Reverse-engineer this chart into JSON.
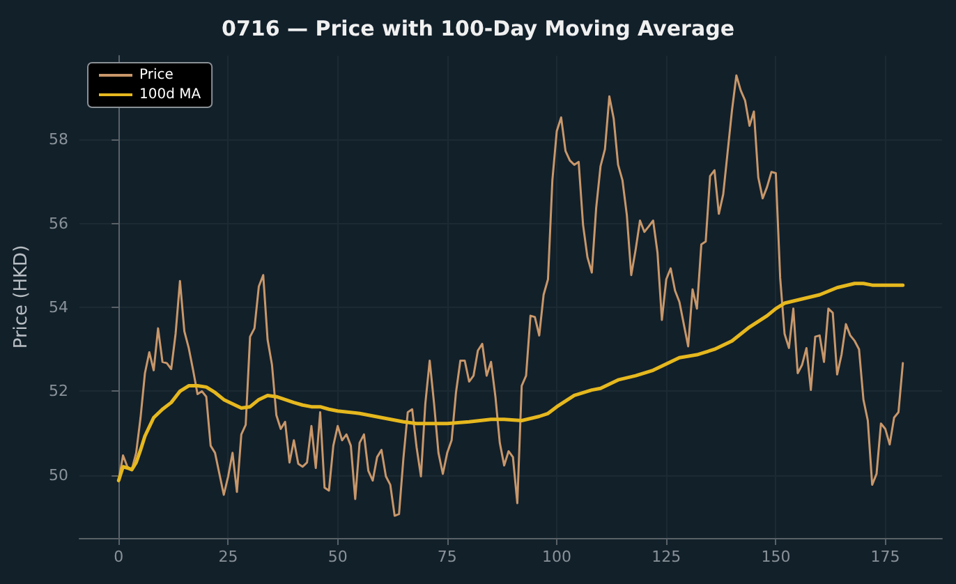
{
  "chart_data": {
    "type": "line",
    "title": "0716 — Price with 100-Day Moving Average",
    "ylabel": "Price (HKD)",
    "xlim": [
      -8.95,
      187.95
    ],
    "xticks": [
      0,
      25,
      50,
      75,
      100,
      125,
      150,
      175
    ],
    "ylim": [
      48.5,
      60
    ],
    "yticks": [
      50,
      52,
      54,
      56,
      58
    ],
    "grid": true,
    "legend": "top left",
    "marker": "none",
    "line_style": "solid",
    "series": [
      {
        "name": "Price",
        "color": "#c8976a",
        "x": [
          0,
          1,
          2,
          3,
          4,
          5,
          6,
          7,
          8,
          9,
          10,
          11,
          12,
          13,
          14,
          15,
          16,
          17,
          18,
          19,
          20,
          21,
          22,
          23,
          24,
          25,
          26,
          27,
          28,
          29,
          30,
          31,
          32,
          33,
          34,
          35,
          36,
          37,
          38,
          39,
          40,
          41,
          42,
          43,
          44,
          45,
          46,
          47,
          48,
          49,
          50,
          51,
          52,
          53,
          54,
          55,
          56,
          57,
          58,
          59,
          60,
          61,
          62,
          63,
          64,
          65,
          66,
          67,
          68,
          69,
          70,
          71,
          72,
          73,
          74,
          75,
          76,
          77,
          78,
          79,
          80,
          81,
          82,
          83,
          84,
          85,
          86,
          87,
          88,
          89,
          90,
          91,
          92,
          93,
          94,
          95,
          96,
          97,
          98,
          99,
          100,
          101,
          102,
          103,
          104,
          105,
          106,
          107,
          108,
          109,
          110,
          111,
          112,
          113,
          114,
          115,
          116,
          117,
          118,
          119,
          120,
          121,
          122,
          123,
          124,
          125,
          126,
          127,
          128,
          129,
          130,
          131,
          132,
          133,
          134,
          135,
          136,
          137,
          138,
          139,
          140,
          141,
          142,
          143,
          144,
          145,
          146,
          147,
          148,
          149,
          150,
          151,
          152,
          153,
          154,
          155,
          156,
          157,
          158,
          159,
          160,
          161,
          162,
          163,
          164,
          165,
          166,
          167,
          168,
          169,
          170,
          171,
          172,
          173,
          174,
          175,
          176,
          177,
          178,
          179
        ],
        "values": [
          49.87,
          50.47,
          50.2,
          50.13,
          50.53,
          51.37,
          52.43,
          52.93,
          52.5,
          53.5,
          52.7,
          52.67,
          52.53,
          53.37,
          54.63,
          53.43,
          53.03,
          52.5,
          51.93,
          52.0,
          51.87,
          50.7,
          50.53,
          50.03,
          49.53,
          49.97,
          50.53,
          49.6,
          50.97,
          51.2,
          53.3,
          53.5,
          54.5,
          54.77,
          53.23,
          52.63,
          51.43,
          51.1,
          51.27,
          50.3,
          50.83,
          50.27,
          50.2,
          50.3,
          51.17,
          50.17,
          51.5,
          49.7,
          49.63,
          50.7,
          51.17,
          50.83,
          50.97,
          50.7,
          49.43,
          50.77,
          50.97,
          50.1,
          49.87,
          50.43,
          50.6,
          49.97,
          49.77,
          49.03,
          49.07,
          50.4,
          51.5,
          51.57,
          50.67,
          49.97,
          51.7,
          52.73,
          51.7,
          50.53,
          50.03,
          50.53,
          50.83,
          51.97,
          52.73,
          52.73,
          52.23,
          52.37,
          52.97,
          53.13,
          52.37,
          52.7,
          51.87,
          50.77,
          50.23,
          50.57,
          50.43,
          49.33,
          52.13,
          52.37,
          53.8,
          53.77,
          53.33,
          54.3,
          54.67,
          57.03,
          58.2,
          58.53,
          57.73,
          57.5,
          57.4,
          57.47,
          55.97,
          55.2,
          54.83,
          56.37,
          57.37,
          57.77,
          59.03,
          58.5,
          57.4,
          57.03,
          56.2,
          54.77,
          55.37,
          56.07,
          55.8,
          55.93,
          56.07,
          55.3,
          53.7,
          54.67,
          54.93,
          54.4,
          54.13,
          53.6,
          53.07,
          54.43,
          53.97,
          55.5,
          55.57,
          57.13,
          57.27,
          56.23,
          56.7,
          57.7,
          58.7,
          59.53,
          59.17,
          58.93,
          58.33,
          58.67,
          57.1,
          56.6,
          56.87,
          57.23,
          57.2,
          54.7,
          53.37,
          53.03,
          53.97,
          52.43,
          52.63,
          53.03,
          52.03,
          53.3,
          53.33,
          52.7,
          53.97,
          53.87,
          52.4,
          52.87,
          53.6,
          53.33,
          53.2,
          53.0,
          51.8,
          51.3,
          49.77,
          50.03,
          51.23,
          51.1,
          50.73,
          51.37,
          51.5,
          52.67
        ]
      },
      {
        "name": "100d MA",
        "color": "#e6b81e",
        "x": [
          0,
          1,
          2,
          3,
          4,
          5,
          6,
          8,
          10,
          12,
          14,
          16,
          18,
          20,
          22,
          24,
          26,
          28,
          30,
          32,
          34,
          36,
          38,
          40,
          42,
          44,
          46,
          48,
          50,
          55,
          60,
          65,
          68,
          72,
          75,
          80,
          85,
          88,
          92,
          96,
          98,
          100,
          104,
          108,
          110,
          114,
          118,
          122,
          126,
          128,
          132,
          136,
          140,
          144,
          148,
          150,
          152,
          156,
          160,
          164,
          168,
          170,
          172,
          176,
          179
        ],
        "values": [
          49.87,
          50.2,
          50.17,
          50.13,
          50.3,
          50.6,
          50.93,
          51.37,
          51.57,
          51.73,
          52.0,
          52.13,
          52.13,
          52.1,
          51.97,
          51.8,
          51.7,
          51.6,
          51.63,
          51.8,
          51.9,
          51.87,
          51.8,
          51.73,
          51.67,
          51.63,
          51.63,
          51.57,
          51.53,
          51.47,
          51.37,
          51.27,
          51.23,
          51.23,
          51.23,
          51.27,
          51.33,
          51.33,
          51.3,
          51.4,
          51.47,
          51.63,
          51.9,
          52.03,
          52.07,
          52.27,
          52.37,
          52.5,
          52.7,
          52.8,
          52.87,
          53.0,
          53.2,
          53.53,
          53.8,
          53.97,
          54.1,
          54.2,
          54.3,
          54.47,
          54.57,
          54.57,
          54.53,
          54.53,
          54.53
        ]
      }
    ]
  }
}
